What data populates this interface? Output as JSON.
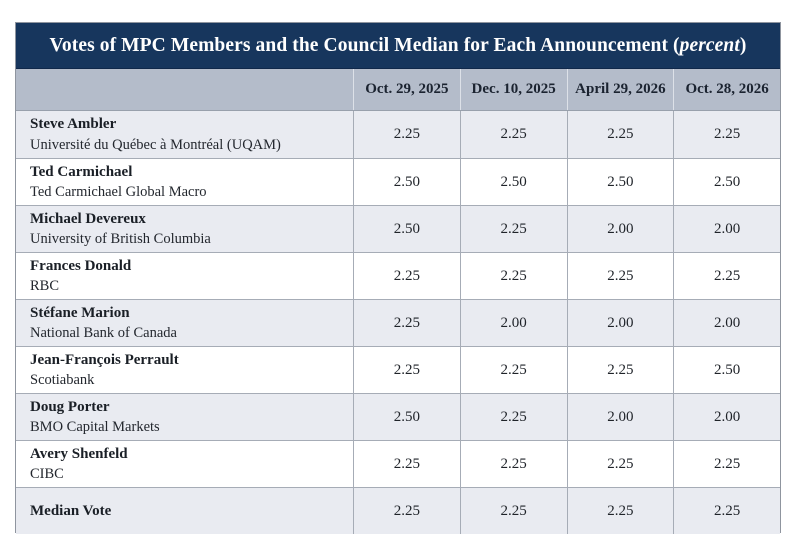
{
  "title": {
    "prefix": "Votes of MPC Members and the Council Median for Each Announcement (",
    "italic": "percent",
    "suffix": ")"
  },
  "columns": [
    "Oct. 29, 2025",
    "Dec. 10, 2025",
    "April 29, 2026",
    "Oct. 28, 2026"
  ],
  "table": {
    "rows": [
      {
        "name": "Steve Ambler",
        "affiliation": "Université du Québec à Montréal (UQAM)",
        "votes": [
          "2.25",
          "2.25",
          "2.25",
          "2.25"
        ]
      },
      {
        "name": "Ted Carmichael",
        "affiliation": "Ted Carmichael Global Macro",
        "votes": [
          "2.50",
          "2.50",
          "2.50",
          "2.50"
        ]
      },
      {
        "name": "Michael Devereux",
        "affiliation": "University of British Columbia",
        "votes": [
          "2.50",
          "2.25",
          "2.00",
          "2.00"
        ]
      },
      {
        "name": "Frances Donald",
        "affiliation": "RBC",
        "votes": [
          "2.25",
          "2.25",
          "2.25",
          "2.25"
        ]
      },
      {
        "name": "Stéfane Marion",
        "affiliation": "National Bank of Canada",
        "votes": [
          "2.25",
          "2.00",
          "2.00",
          "2.00"
        ]
      },
      {
        "name": "Jean-François Perrault",
        "affiliation": "Scotiabank",
        "votes": [
          "2.25",
          "2.25",
          "2.25",
          "2.50"
        ]
      },
      {
        "name": "Doug Porter",
        "affiliation": "BMO Capital Markets",
        "votes": [
          "2.50",
          "2.25",
          "2.00",
          "2.00"
        ]
      },
      {
        "name": "Avery Shenfeld",
        "affiliation": "CIBC",
        "votes": [
          "2.25",
          "2.25",
          "2.25",
          "2.25"
        ]
      }
    ],
    "median": {
      "label": "Median Vote",
      "votes": [
        "2.25",
        "2.25",
        "2.25",
        "2.25"
      ]
    }
  },
  "colors": {
    "title_bar_navy": "#17365d",
    "header_band_blue_gray": "#b4bcca",
    "row_tint": "#e9ebf1",
    "grid_line": "#a6acb6",
    "title_text": "#ffffff",
    "body_text": "#1a1f26"
  }
}
